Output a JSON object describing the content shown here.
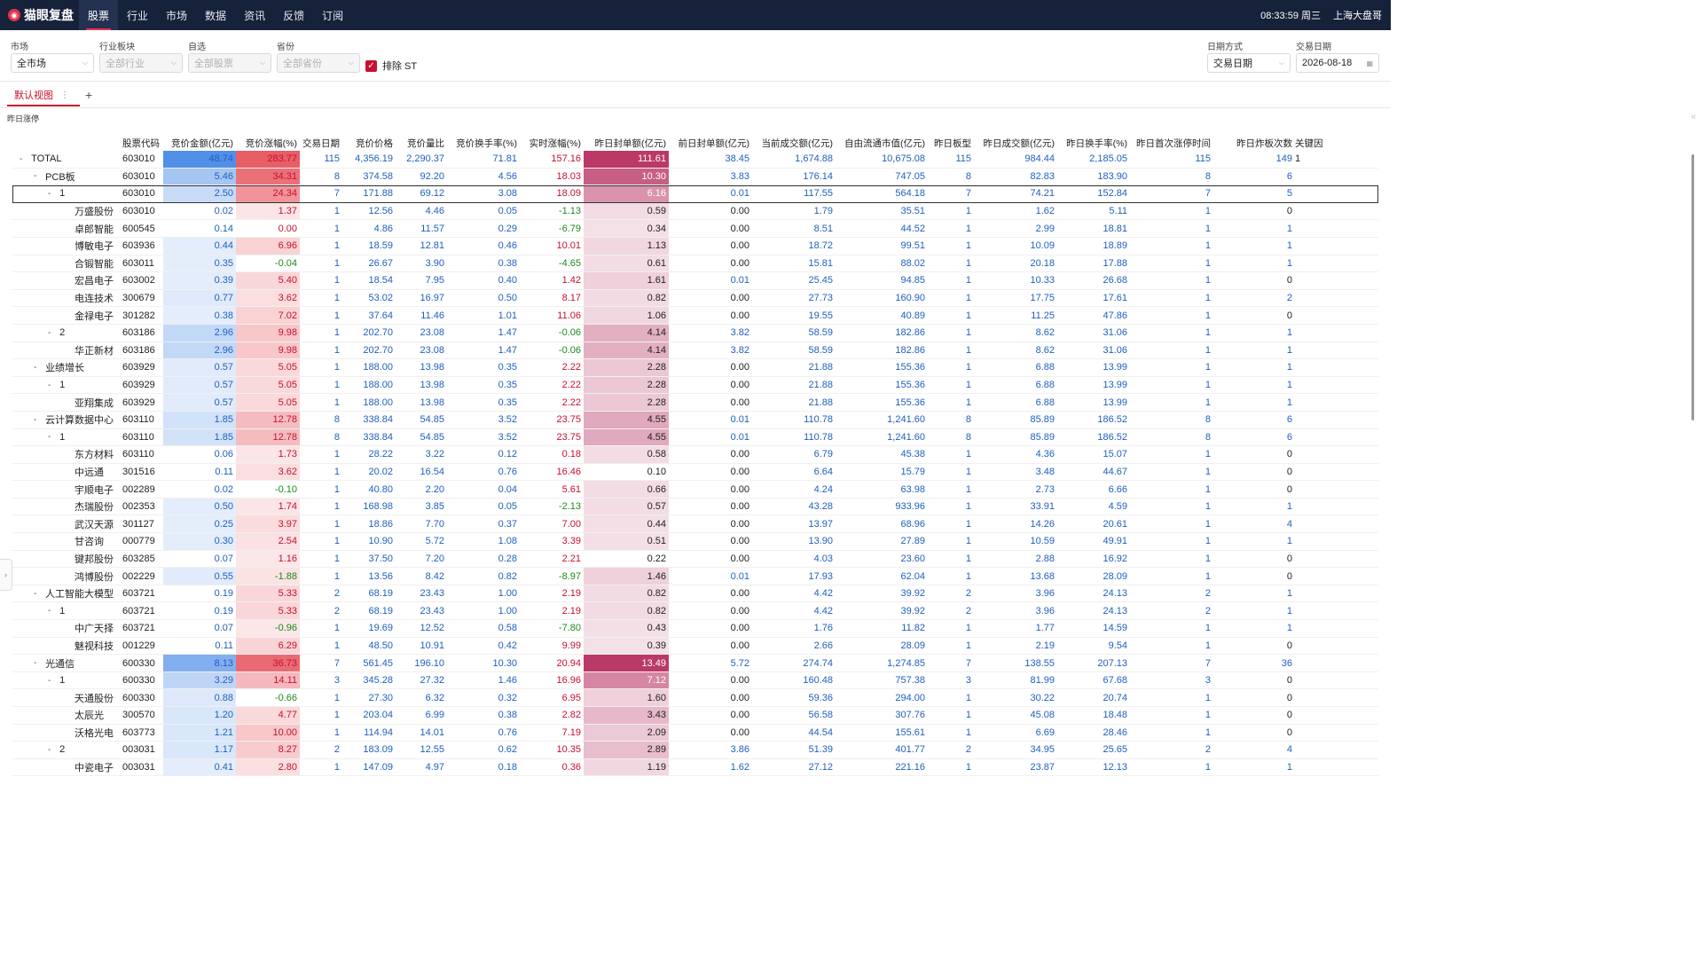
{
  "app": {
    "name": "猫眼复盘",
    "logo_icon": "cat-eye-logo-icon"
  },
  "nav": [
    {
      "label": "股票",
      "active": true
    },
    {
      "label": "行业"
    },
    {
      "label": "市场"
    },
    {
      "label": "数据"
    },
    {
      "label": "资讯"
    },
    {
      "label": "反馈"
    },
    {
      "label": "订阅"
    }
  ],
  "status": {
    "time": "08:33:59 周三",
    "user": "上海大盘哥"
  },
  "filters": {
    "market": {
      "label": "市场",
      "value": "全市场"
    },
    "industry": {
      "label": "行业板块",
      "value": "全部行业"
    },
    "watch": {
      "label": "自选",
      "value": "全部股票"
    },
    "province": {
      "label": "省份",
      "value": "全部省份"
    },
    "exclude_st": {
      "label": "排除 ST",
      "checked": true
    },
    "date_mode": {
      "label": "日期方式",
      "value": "交易日期"
    },
    "trade_date": {
      "label": "交易日期",
      "value": "2026-08-18"
    }
  },
  "tabs": {
    "default_view": "默认视图",
    "add": "+"
  },
  "section_label": "昨日涨停",
  "columns": [
    "股票代码",
    "竞价金额(亿元)",
    "竞价涨幅(%)",
    "交易日期",
    "竞价价格",
    "竞价量比",
    "竞价换手率(%)",
    "实时涨幅(%)",
    "昨日封单额(亿元)",
    "前日封单额(亿元)",
    "当前成交额(亿元)",
    "自由流通市值(亿元)",
    "昨日板型",
    "昨日成交额(亿元)",
    "昨日换手率(%)",
    "昨日首次涨停时间",
    "昨日炸板次数",
    "关键因"
  ],
  "rows": [
    [
      "0",
      "TOTAL",
      "603010",
      "48.74",
      "283.77",
      "115",
      "4,356.19",
      "2,290.37",
      "71.81",
      "157.16",
      "111.61",
      "38.45",
      "1,674.88",
      "10,675.08",
      "115",
      "984.44",
      "2,185.05",
      "115",
      "149",
      "1"
    ],
    [
      "1",
      "PCB板",
      "603010",
      "5.46",
      "34.31",
      "8",
      "374.58",
      "92.20",
      "4.56",
      "18.03",
      "10.30",
      "3.83",
      "176.14",
      "747.05",
      "8",
      "82.83",
      "183.90",
      "8",
      "6",
      ""
    ],
    [
      "2",
      "1",
      "603010",
      "2.50",
      "24.34",
      "7",
      "171.88",
      "69.12",
      "3.08",
      "18.09",
      "6.16",
      "0.01",
      "117.55",
      "564.18",
      "7",
      "74.21",
      "152.84",
      "7",
      "5",
      ""
    ],
    [
      "3",
      "万盛股份",
      "603010",
      "0.02",
      "1.37",
      "1",
      "12.56",
      "4.46",
      "0.05",
      "-1.13",
      "0.59",
      "0.00",
      "1.79",
      "35.51",
      "1",
      "1.62",
      "5.11",
      "1",
      "0",
      ""
    ],
    [
      "3",
      "卓郎智能",
      "600545",
      "0.14",
      "0.00",
      "1",
      "4.86",
      "11.57",
      "0.29",
      "-6.79",
      "0.34",
      "0.00",
      "8.51",
      "44.52",
      "1",
      "2.99",
      "18.81",
      "1",
      "1",
      ""
    ],
    [
      "3",
      "博敏电子",
      "603936",
      "0.44",
      "6.96",
      "1",
      "18.59",
      "12.81",
      "0.46",
      "10.01",
      "1.13",
      "0.00",
      "18.72",
      "99.51",
      "1",
      "10.09",
      "18.89",
      "1",
      "1",
      ""
    ],
    [
      "3",
      "合锻智能",
      "603011",
      "0.35",
      "-0.04",
      "1",
      "26.67",
      "3.90",
      "0.38",
      "-4.65",
      "0.61",
      "0.00",
      "15.81",
      "88.02",
      "1",
      "20.18",
      "17.88",
      "1",
      "1",
      ""
    ],
    [
      "3",
      "宏昌电子",
      "603002",
      "0.39",
      "5.40",
      "1",
      "18.54",
      "7.95",
      "0.40",
      "1.42",
      "1.61",
      "0.01",
      "25.45",
      "94.85",
      "1",
      "10.33",
      "26.68",
      "1",
      "0",
      ""
    ],
    [
      "3",
      "电连技术",
      "300679",
      "0.77",
      "3.62",
      "1",
      "53.02",
      "16.97",
      "0.50",
      "8.17",
      "0.82",
      "0.00",
      "27.73",
      "160.90",
      "1",
      "17.75",
      "17.61",
      "1",
      "2",
      ""
    ],
    [
      "3",
      "金禄电子",
      "301282",
      "0.38",
      "7.02",
      "1",
      "37.64",
      "11.46",
      "1.01",
      "11.06",
      "1.06",
      "0.00",
      "19.55",
      "40.89",
      "1",
      "11.25",
      "47.86",
      "1",
      "0",
      ""
    ],
    [
      "2",
      "2",
      "603186",
      "2.96",
      "9.98",
      "1",
      "202.70",
      "23.08",
      "1.47",
      "-0.06",
      "4.14",
      "3.82",
      "58.59",
      "182.86",
      "1",
      "8.62",
      "31.06",
      "1",
      "1",
      ""
    ],
    [
      "3",
      "华正新材",
      "603186",
      "2.96",
      "9.98",
      "1",
      "202.70",
      "23.08",
      "1.47",
      "-0.06",
      "4.14",
      "3.82",
      "58.59",
      "182.86",
      "1",
      "8.62",
      "31.06",
      "1",
      "1",
      ""
    ],
    [
      "1",
      "业绩增长",
      "603929",
      "0.57",
      "5.05",
      "1",
      "188.00",
      "13.98",
      "0.35",
      "2.22",
      "2.28",
      "0.00",
      "21.88",
      "155.36",
      "1",
      "6.88",
      "13.99",
      "1",
      "1",
      ""
    ],
    [
      "2",
      "1",
      "603929",
      "0.57",
      "5.05",
      "1",
      "188.00",
      "13.98",
      "0.35",
      "2.22",
      "2.28",
      "0.00",
      "21.88",
      "155.36",
      "1",
      "6.88",
      "13.99",
      "1",
      "1",
      ""
    ],
    [
      "3",
      "亚翔集成",
      "603929",
      "0.57",
      "5.05",
      "1",
      "188.00",
      "13.98",
      "0.35",
      "2.22",
      "2.28",
      "0.00",
      "21.88",
      "155.36",
      "1",
      "6.88",
      "13.99",
      "1",
      "1",
      ""
    ],
    [
      "1",
      "云计算数据中心",
      "603110",
      "1.85",
      "12.78",
      "8",
      "338.84",
      "54.85",
      "3.52",
      "23.75",
      "4.55",
      "0.01",
      "110.78",
      "1,241.60",
      "8",
      "85.89",
      "186.52",
      "8",
      "6",
      ""
    ],
    [
      "2",
      "1",
      "603110",
      "1.85",
      "12.78",
      "8",
      "338.84",
      "54.85",
      "3.52",
      "23.75",
      "4.55",
      "0.01",
      "110.78",
      "1,241.60",
      "8",
      "85.89",
      "186.52",
      "8",
      "6",
      ""
    ],
    [
      "3",
      "东方材料",
      "603110",
      "0.06",
      "1.73",
      "1",
      "28.22",
      "3.22",
      "0.12",
      "0.18",
      "0.58",
      "0.00",
      "6.79",
      "45.38",
      "1",
      "4.36",
      "15.07",
      "1",
      "0",
      ""
    ],
    [
      "3",
      "中远通",
      "301516",
      "0.11",
      "3.62",
      "1",
      "20.02",
      "16.54",
      "0.76",
      "16.46",
      "0.10",
      "0.00",
      "6.64",
      "15.79",
      "1",
      "3.48",
      "44.67",
      "1",
      "0",
      ""
    ],
    [
      "3",
      "宇顺电子",
      "002289",
      "0.02",
      "-0.10",
      "1",
      "40.80",
      "2.20",
      "0.04",
      "5.61",
      "0.66",
      "0.00",
      "4.24",
      "63.98",
      "1",
      "2.73",
      "6.66",
      "1",
      "0",
      ""
    ],
    [
      "3",
      "杰瑞股份",
      "002353",
      "0.50",
      "1.74",
      "1",
      "168.98",
      "3.85",
      "0.05",
      "-2.13",
      "0.57",
      "0.00",
      "43.28",
      "933.96",
      "1",
      "33.91",
      "4.59",
      "1",
      "1",
      ""
    ],
    [
      "3",
      "武汉天源",
      "301127",
      "0.25",
      "3.97",
      "1",
      "18.86",
      "7.70",
      "0.37",
      "7.00",
      "0.44",
      "0.00",
      "13.97",
      "68.96",
      "1",
      "14.26",
      "20.61",
      "1",
      "4",
      ""
    ],
    [
      "3",
      "甘咨询",
      "000779",
      "0.30",
      "2.54",
      "1",
      "10.90",
      "5.72",
      "1.08",
      "3.39",
      "0.51",
      "0.00",
      "13.90",
      "27.89",
      "1",
      "10.59",
      "49.91",
      "1",
      "1",
      ""
    ],
    [
      "3",
      "键邦股份",
      "603285",
      "0.07",
      "1.16",
      "1",
      "37.50",
      "7.20",
      "0.28",
      "2.21",
      "0.22",
      "0.00",
      "4.03",
      "23.60",
      "1",
      "2.88",
      "16.92",
      "1",
      "0",
      ""
    ],
    [
      "3",
      "鸿博股份",
      "002229",
      "0.55",
      "-1.88",
      "1",
      "13.56",
      "8.42",
      "0.82",
      "-8.97",
      "1.46",
      "0.01",
      "17.93",
      "62.04",
      "1",
      "13.68",
      "28.09",
      "1",
      "0",
      ""
    ],
    [
      "1",
      "人工智能大模型",
      "603721",
      "0.19",
      "5.33",
      "2",
      "68.19",
      "23.43",
      "1.00",
      "2.19",
      "0.82",
      "0.00",
      "4.42",
      "39.92",
      "2",
      "3.96",
      "24.13",
      "2",
      "1",
      ""
    ],
    [
      "2",
      "1",
      "603721",
      "0.19",
      "5.33",
      "2",
      "68.19",
      "23.43",
      "1.00",
      "2.19",
      "0.82",
      "0.00",
      "4.42",
      "39.92",
      "2",
      "3.96",
      "24.13",
      "2",
      "1",
      ""
    ],
    [
      "3",
      "中广天择",
      "603721",
      "0.07",
      "-0.96",
      "1",
      "19.69",
      "12.52",
      "0.58",
      "-7.80",
      "0.43",
      "0.00",
      "1.76",
      "11.82",
      "1",
      "1.77",
      "14.59",
      "1",
      "1",
      ""
    ],
    [
      "3",
      "魅视科技",
      "001229",
      "0.11",
      "6.29",
      "1",
      "48.50",
      "10.91",
      "0.42",
      "9.99",
      "0.39",
      "0.00",
      "2.66",
      "28.09",
      "1",
      "2.19",
      "9.54",
      "1",
      "0",
      ""
    ],
    [
      "1",
      "光通信",
      "600330",
      "8.13",
      "36.73",
      "7",
      "561.45",
      "196.10",
      "10.30",
      "20.94",
      "13.49",
      "5.72",
      "274.74",
      "1,274.85",
      "7",
      "138.55",
      "207.13",
      "7",
      "36",
      ""
    ],
    [
      "2",
      "1",
      "600330",
      "3.29",
      "14.11",
      "3",
      "345.28",
      "27.32",
      "1.46",
      "16.96",
      "7.12",
      "0.00",
      "160.48",
      "757.38",
      "3",
      "81.99",
      "67.68",
      "3",
      "0",
      ""
    ],
    [
      "3",
      "天通股份",
      "600330",
      "0.88",
      "-0.66",
      "1",
      "27.30",
      "6.32",
      "0.32",
      "6.95",
      "1.60",
      "0.00",
      "59.36",
      "294.00",
      "1",
      "30.22",
      "20.74",
      "1",
      "0",
      ""
    ],
    [
      "3",
      "太辰光",
      "300570",
      "1.20",
      "4.77",
      "1",
      "203.04",
      "6.99",
      "0.38",
      "2.82",
      "3.43",
      "0.00",
      "56.58",
      "307.76",
      "1",
      "45.08",
      "18.48",
      "1",
      "0",
      ""
    ],
    [
      "3",
      "沃格光电",
      "603773",
      "1.21",
      "10.00",
      "1",
      "114.94",
      "14.01",
      "0.76",
      "7.19",
      "2.09",
      "0.00",
      "44.54",
      "155.61",
      "1",
      "6.69",
      "28.46",
      "1",
      "0",
      ""
    ],
    [
      "2",
      "2",
      "003031",
      "1.17",
      "8.27",
      "2",
      "183.09",
      "12.55",
      "0.62",
      "10.35",
      "2.89",
      "3.86",
      "51.39",
      "401.77",
      "2",
      "34.95",
      "25.65",
      "2",
      "4",
      ""
    ],
    [
      "3",
      "中瓷电子",
      "003031",
      "0.41",
      "2.80",
      "1",
      "147.09",
      "4.97",
      "0.18",
      "0.36",
      "1.19",
      "1.62",
      "27.12",
      "221.16",
      "1",
      "23.87",
      "12.13",
      "1",
      "1",
      ""
    ]
  ]
}
